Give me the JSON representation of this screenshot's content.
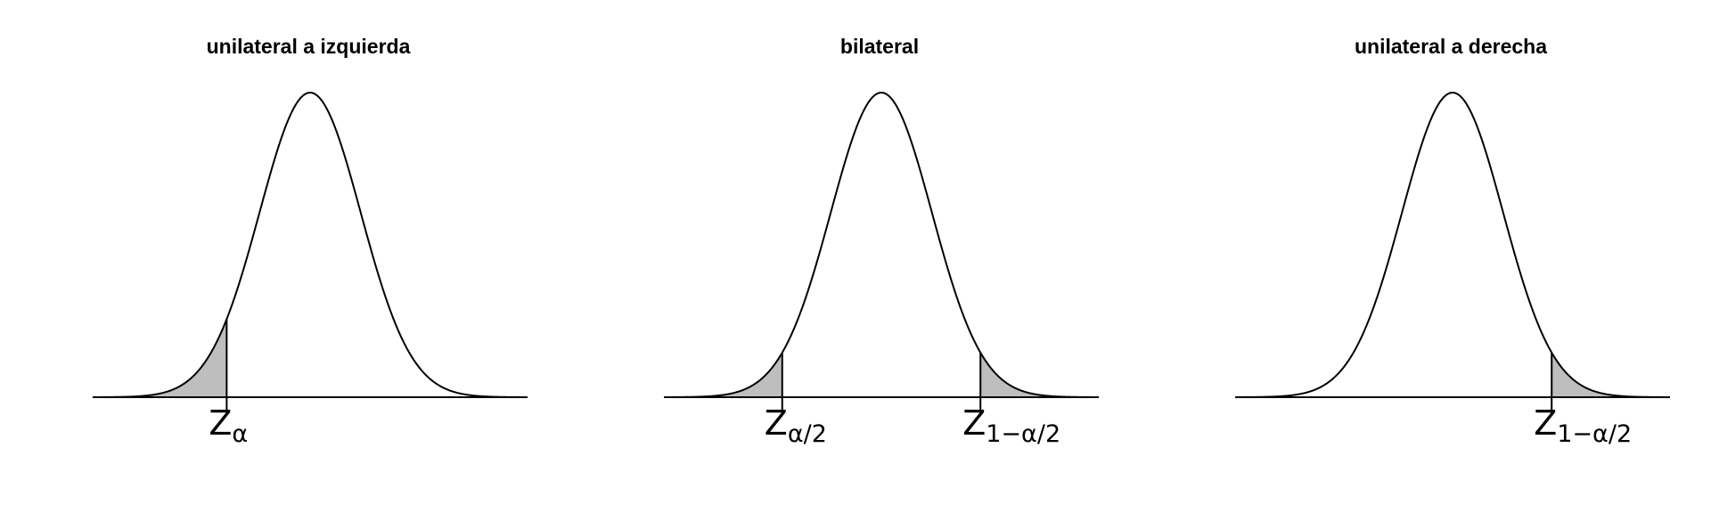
{
  "chart_data": [
    {
      "type": "area",
      "title": "unilateral a izquierda",
      "distribution": "normal",
      "mu": 0,
      "sigma": 1,
      "xlim": [
        -4.3,
        4.3
      ],
      "shaded_regions": [
        [
          -4.3,
          -1.65
        ]
      ],
      "critical_values": [
        {
          "x": -1.65,
          "label_main": "Z",
          "label_sub": "α"
        }
      ],
      "colors": {
        "curve": "#000000",
        "fill": "#bebebe",
        "axis": "#000000"
      }
    },
    {
      "type": "area",
      "title": "bilateral",
      "distribution": "normal",
      "mu": 0,
      "sigma": 1,
      "xlim": [
        -4.3,
        4.3
      ],
      "shaded_regions": [
        [
          -4.3,
          -1.96
        ],
        [
          1.96,
          4.3
        ]
      ],
      "critical_values": [
        {
          "x": -1.96,
          "label_main": "Z",
          "label_sub": "α/2"
        },
        {
          "x": 1.96,
          "label_main": "Z",
          "label_sub": "1−α/2"
        }
      ],
      "colors": {
        "curve": "#000000",
        "fill": "#bebebe",
        "axis": "#000000"
      }
    },
    {
      "type": "area",
      "title": "unilateral a derecha",
      "distribution": "normal",
      "mu": 0,
      "sigma": 1,
      "xlim": [
        -4.3,
        4.3
      ],
      "shaded_regions": [
        [
          1.96,
          4.3
        ]
      ],
      "critical_values": [
        {
          "x": 1.96,
          "label_main": "Z",
          "label_sub": "1−α/2"
        }
      ],
      "colors": {
        "curve": "#000000",
        "fill": "#bebebe",
        "axis": "#000000"
      }
    }
  ]
}
